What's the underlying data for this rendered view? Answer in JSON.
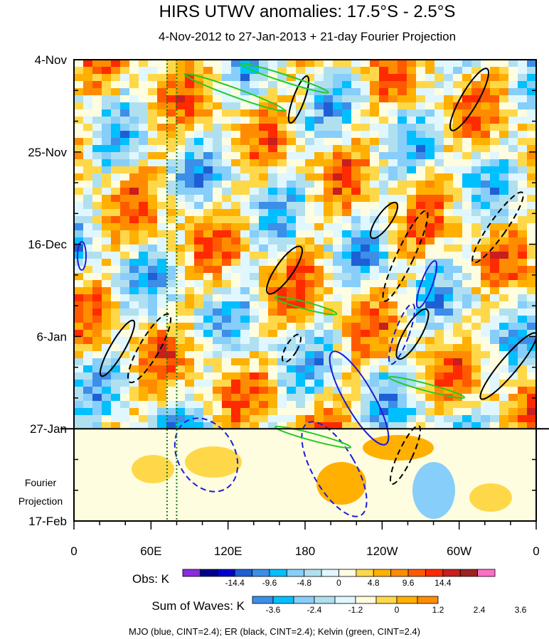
{
  "chart_data": {
    "type": "heatmap",
    "title": "HIRS UTWV anomalies: 17.5°S - 2.5°S",
    "subtitle": "4-Nov-2012 to 27-Jan-2013 + 21-day Fourier Projection",
    "y_tick_labels": [
      "4-Nov",
      "25-Nov",
      "16-Dec",
      "6-Jan",
      "27-Jan",
      "17-Feb"
    ],
    "y_tick_day_offsets": [
      0,
      21,
      42,
      63,
      84,
      105
    ],
    "x_tick_labels": [
      "0",
      "60E",
      "120E",
      "180",
      "120W",
      "60W",
      "0"
    ],
    "x_tick_lon_east": [
      0,
      60,
      120,
      180,
      240,
      300,
      360
    ],
    "projection_split_label": "27-Jan",
    "projection_label_line1": "Fourier",
    "projection_label_line2": "Projection",
    "reference_longitudes_east": [
      72.5,
      80
    ],
    "obs_colorbar": {
      "label": "Obs: K",
      "tick_labels": [
        "-14.4",
        "-9.6",
        "-4.8",
        "0",
        "4.8",
        "9.6",
        "14.4"
      ],
      "colors": [
        "#8a2be2",
        "#00008b",
        "#0000cd",
        "#1e5fd6",
        "#3c8ee8",
        "#00bfff",
        "#87cefa",
        "#b0e0f0",
        "#e0f7ff",
        "#fffde0",
        "#ffd84a",
        "#ffb000",
        "#ff8c00",
        "#ff5a00",
        "#ff2a00",
        "#c81e1e",
        "#9b2323",
        "#ff6ec7"
      ]
    },
    "waves_colorbar": {
      "label": "Sum of Waves: K",
      "tick_labels": [
        "-3.6",
        "-2.4",
        "-1.2",
        "0",
        "1.2",
        "2.4",
        "3.6"
      ],
      "colors": [
        "#3c8ee8",
        "#00bfff",
        "#87cefa",
        "#b0e0f0",
        "#e0f7ff",
        "#fffde0",
        "#ffd84a",
        "#ffb000",
        "#ff8c00"
      ]
    },
    "legend_note": "MJO (blue, CINT=2.4); ER (black, CINT=2.4); Kelvin (green, CINT=2.4)",
    "series": [
      {
        "name": "MJO",
        "color": "#1c1cd6",
        "contour_interval": 2.4
      },
      {
        "name": "ER",
        "color": "#000000",
        "contour_interval": 2.4
      },
      {
        "name": "Kelvin",
        "color": "#22cc22",
        "contour_interval": 2.4
      }
    ]
  }
}
